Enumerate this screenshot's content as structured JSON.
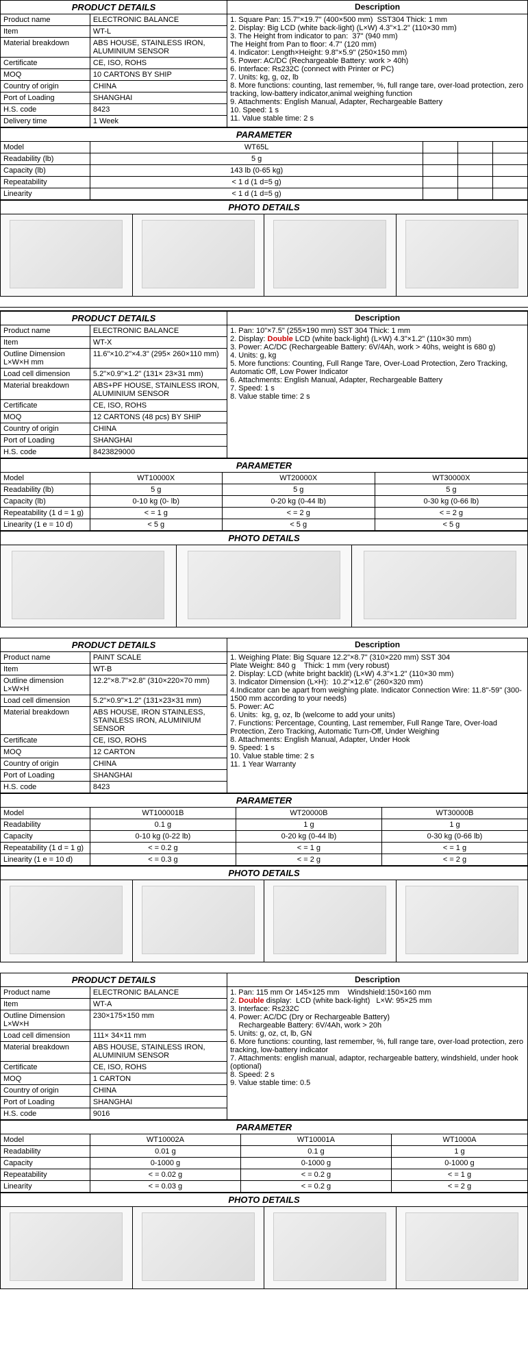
{
  "sections": {
    "product_details": "PRODUCT DETAILS",
    "description": "Description",
    "parameter": "PARAMETER",
    "photo_details": "PHOTO DETAILS"
  },
  "p1": {
    "rows": [
      [
        "Product name",
        "ELECTRONIC BALANCE"
      ],
      [
        "Item",
        "WT-L"
      ],
      [
        "Material breakdown",
        "ABS HOUSE, STAINLESS IRON, ALUMINIUM SENSOR"
      ],
      [
        "Certificate",
        "CE, ISO, ROHS"
      ],
      [
        "MOQ",
        "10 CARTONS BY SHIP"
      ],
      [
        "Country of origin",
        "CHINA"
      ],
      [
        "Port of Loading",
        "SHANGHAI"
      ],
      [
        "H.S. code",
        "8423"
      ],
      [
        "Delivery time",
        "1 Week"
      ]
    ],
    "desc": "1. Square Pan: 15.7\"×19.7\" (400×500 mm)  SST304 Thick: 1 mm\n2. Display: Big LCD (white back-light) (L×W) 4.3\"×1.2\" (110×30 mm)\n3. The Height from indicator to pan:  37\" (940 mm)\nThe Height from Pan to floor: 4.7\" (120 mm)\n4. Indicator: Length×Height: 9.8\"×5.9\" (250×150 mm)\n5. Power: AC/DC (Rechargeable Battery: work > 40h)\n6. Interface: Rs232C (connect with Printer or PC)\n7. Units: kg, g, oz, lb\n8. More functions: counting, last remember, %, full range tare, over-load protection, zero tracking, low-battery indicator,animal weighing function\n9. Attachments: English Manual, Adapter, Rechargeable Battery\n10. Speed: 1 s\n11. Value stable time: 2 s",
    "param_head": [
      "Model",
      "WT65L",
      "",
      "",
      ""
    ],
    "param_rows": [
      [
        "Readability (lb)",
        "5 g",
        "",
        "",
        ""
      ],
      [
        "Capacity (lb)",
        "143 lb (0-65 kg)",
        "",
        "",
        ""
      ],
      [
        "Repeatability",
        "< 1 d (1 d=5 g)",
        "",
        "",
        ""
      ],
      [
        "Linearity",
        "< 1 d (1 d=5 g)",
        "",
        "",
        ""
      ]
    ]
  },
  "p2": {
    "rows": [
      [
        "Product name",
        "ELECTRONIC BALANCE"
      ],
      [
        "Item",
        "WT-X"
      ],
      [
        "Outline Dimension L×W×H mm",
        "11.6\"×10.2\"×4.3\" (295× 260×110 mm)"
      ],
      [
        "Load cell dimension",
        "5.2\"×0.9\"×1.2\" (131× 23×31 mm)"
      ],
      [
        "Material breakdown",
        "ABS+PF HOUSE, STAINLESS IRON, ALUMINIUM SENSOR"
      ],
      [
        "Certificate",
        "CE, ISO, ROHS"
      ],
      [
        "MOQ",
        "12 CARTONS (48 pcs) BY SHIP"
      ],
      [
        "Country of origin",
        "CHINA"
      ],
      [
        "Port of Loading",
        "SHANGHAI"
      ],
      [
        "H.S. code",
        "8423829000"
      ]
    ],
    "desc": "1. Pan: 10\"×7.5\" (255×190 mm) SST 304 Thick: 1 mm\n2. Display: Double LCD (white back-light) (L×W) 4.3\"×1.2\" (110×30 mm)\n3. Power: AC/DC (Rechargeable Battery: 6V/4Ah, work > 40hs, weight is 680 g)\n4. Units: g, kg\n5. More functions: Counting, Full Range Tare, Over-Load Protection, Zero Tracking, Automatic Off, Low Power Indicator\n6. Attachments: English Manual, Adapter, Rechargeable Battery\n7. Speed: 1 s\n8. Value stable time: 2 s",
    "param_head": [
      "Model",
      "WT10000X",
      "WT20000X",
      "WT30000X"
    ],
    "param_rows": [
      [
        "Readability (lb)",
        "5 g",
        "5 g",
        "5 g"
      ],
      [
        "Capacity (lb)",
        "0-10 kg (0- lb)",
        "0-20 kg (0-44 lb)",
        "0-30 kg (0-66 lb)"
      ],
      [
        "Repeatability (1 d = 1 g)",
        "< = 1 g",
        "< = 2 g",
        "< = 2 g"
      ],
      [
        "Linearity (1 e = 10 d)",
        "< 5 g",
        "< 5 g",
        "< 5 g"
      ]
    ]
  },
  "p3": {
    "rows": [
      [
        "Product name",
        "PAINT SCALE"
      ],
      [
        "Item",
        "WT-B"
      ],
      [
        "Outline dimension L×W×H",
        "12.2\"×8.7\"×2.8\" (310×220×70 mm)"
      ],
      [
        "Load cell dimension",
        "5.2\"×0.9\"×1.2\" (131×23×31 mm)"
      ],
      [
        "Material breakdown",
        "ABS HOUSE, IRON STAINLESS, STAINLESS IRON, ALUMINIUM SENSOR"
      ],
      [
        "Certificate",
        "CE, ISO, ROHS"
      ],
      [
        "MOQ",
        "12 CARTON"
      ],
      [
        "Country of origin",
        "CHINA"
      ],
      [
        "Port of Loading",
        "SHANGHAI"
      ],
      [
        "H.S. code",
        "8423"
      ]
    ],
    "desc": "1. Weighing Plate: Big Square 12.2\"×8.7\" (310×220 mm) SST 304\nPlate Weight: 840 g    Thick: 1 mm (very robust)\n2. Display: LCD (white bright backlit) (L×W) 4.3\"×1.2\" (110×30 mm)\n3. Indicator Dimension (L×H):  10.2\"×12.6\" (260×320 mm)\n4.Indicator can be apart from weighing plate. Indicator Connection Wire: 11.8\"-59\" (300-1500 mm according to your needs)\n5. Power: AC\n6. Units:  kg, g, oz, lb (welcome to add your units)\n7. Functions: Percentage, Counting, Last remember, Full Range Tare, Over-load Protection, Zero Tracking, Automatic Turn-Off, Under Weighing\n8. Attachments: English Manual, Adapter, Under Hook\n9. Speed: 1 s\n10. Value stable time: 2 s\n11. 1 Year Warranty",
    "param_head": [
      "Model",
      "WT100001B",
      "WT20000B",
      "WT30000B"
    ],
    "param_rows": [
      [
        "Readability",
        "0.1 g",
        "1 g",
        "1 g"
      ],
      [
        "Capacity",
        "0-10 kg (0-22 lb)",
        "0-20 kg (0-44 lb)",
        "0-30 kg (0-66 lb)"
      ],
      [
        "Repeatability (1 d = 1 g)",
        "< = 0.2 g",
        "< = 1 g",
        "< = 1 g"
      ],
      [
        "Linearity (1 e = 10 d)",
        "< = 0.3 g",
        "< = 2 g",
        "< = 2 g"
      ]
    ]
  },
  "p4": {
    "rows": [
      [
        "Product name",
        "ELECTRONIC BALANCE"
      ],
      [
        "Item",
        "WT-A"
      ],
      [
        "Outline Dimension L×W×H",
        "230×175×150 mm"
      ],
      [
        "Load cell dimension",
        "111× 34×11 mm"
      ],
      [
        "Material breakdown",
        "ABS HOUSE, STAINLESS IRON, ALUMINIUM SENSOR"
      ],
      [
        "Certificate",
        "CE, ISO, ROHS"
      ],
      [
        "MOQ",
        "1 CARTON"
      ],
      [
        "Country of origin",
        "CHINA"
      ],
      [
        "Port of Loading",
        "SHANGHAI"
      ],
      [
        "H.S. code",
        "9016"
      ]
    ],
    "desc": "1. Pan: 115 mm Or 145×125 mm    Windshield:150×160 mm\n2. Double display:  LCD (white back-light)   L×W: 95×25 mm\n3. Interface: Rs232C\n4. Power: AC/DC (Dry or Rechargeable Battery)\n    Rechargeable Battery: 6V/4Ah, work > 20h\n5. Units: g, oz, ct, lb, GN\n6. More functions: counting, last remember, %, full range tare, over-load protection, zero tracking, low-battery indicator\n7. Attachments: english manual, adaptor, rechargeable battery, windshield, under hook (optional)\n8. Speed: 2 s\n9. Value stable time: 0.5",
    "param_head": [
      "Model",
      "WT10002A",
      "WT10001A",
      "WT1000A"
    ],
    "param_rows": [
      [
        "Readability",
        "0.01 g",
        "0.1 g",
        "1 g"
      ],
      [
        "Capacity",
        "0-1000 g",
        "0-1000 g",
        "0-1000 g"
      ],
      [
        "Repeatability",
        "< = 0.02 g",
        "< = 0.2 g",
        "< = 1 g"
      ],
      [
        "Linearity",
        "< = 0.03 g",
        "< = 0.2 g",
        "< = 2 g"
      ]
    ]
  },
  "photo_counts": {
    "p1": 4,
    "p2": 3,
    "p3": 4,
    "p4": 4
  }
}
